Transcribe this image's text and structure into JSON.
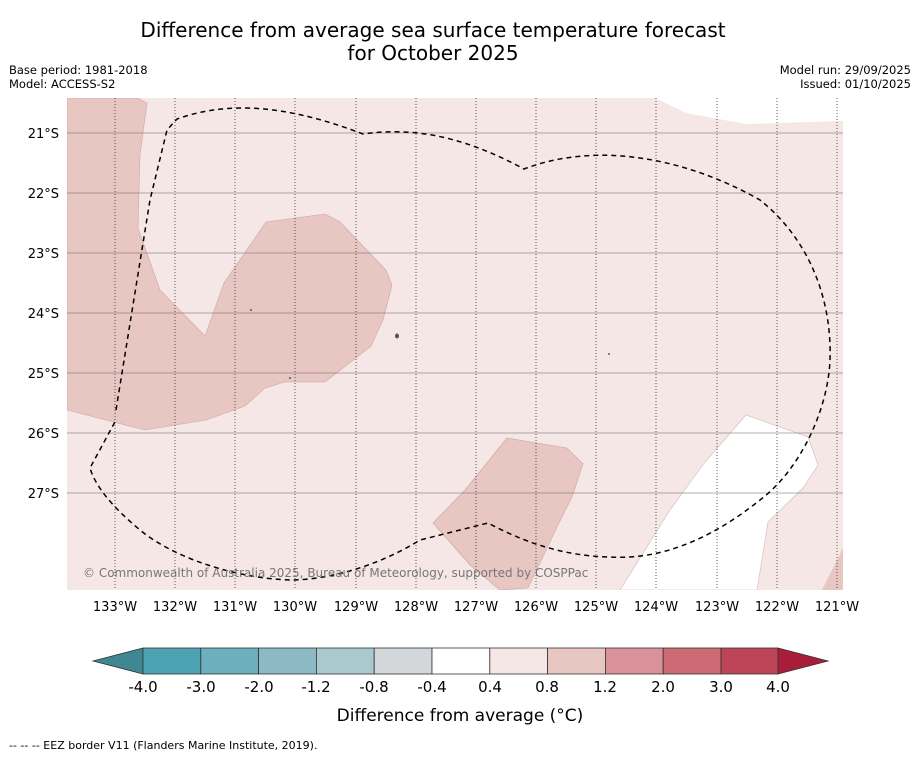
{
  "title": "Difference from average sea surface temperature forecast for October 2025",
  "base_period": "Base period: 1981-2018",
  "model": "Model: ACCESS-S2",
  "model_run": "Model run: 29/09/2025",
  "issued": "Issued: 01/10/2025",
  "copyright": "© Commonwealth of Australia 2025, Bureau of Meteorology, supported by COSPPac",
  "lat_labels": [
    "21°S",
    "22°S",
    "23°S",
    "24°S",
    "25°S",
    "26°S",
    "27°S"
  ],
  "lon_labels": [
    "133°W",
    "132°W",
    "131°W",
    "130°W",
    "129°W",
    "128°W",
    "127°W",
    "126°W",
    "125°W",
    "124°W",
    "123°W",
    "122°W",
    "121°W"
  ],
  "colorbar": {
    "ticks": [
      "-4.0",
      "-3.0",
      "-2.0",
      "-1.2",
      "-0.8",
      "-0.4",
      "0.4",
      "0.8",
      "1.2",
      "2.0",
      "3.0",
      "4.0"
    ],
    "colors": [
      "#3f8892",
      "#4ba3b2",
      "#6eafbd",
      "#8db9c5",
      "#a9c9ce",
      "#d3d7da",
      "#ffffff",
      "#f5e7e6",
      "#e8c6c2",
      "#d9929a",
      "#cc6b74",
      "#be4558",
      "#a81e3a"
    ],
    "label": "Difference from average (°C)"
  },
  "legend_note": "--  --  -- EEZ border V11 (Flanders Marine Institute, 2019)."
}
